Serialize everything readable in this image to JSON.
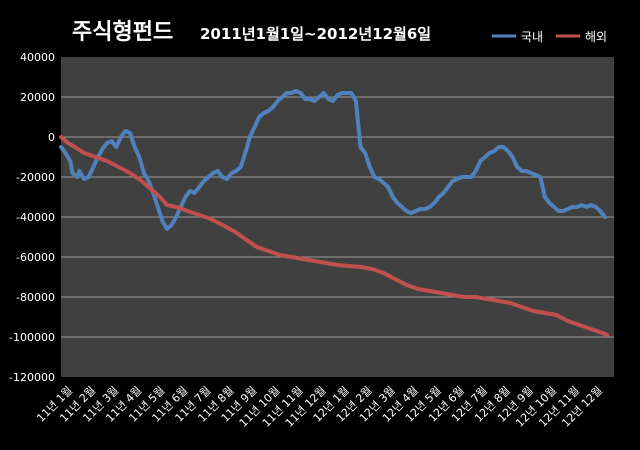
{
  "chart_data": {
    "type": "line",
    "title": "주식형펀드",
    "subtitle": "2011년1월1일~2012년12월6일",
    "xlabel": "",
    "ylabel": "",
    "ylim": [
      -120000,
      40000
    ],
    "y_ticks": [
      40000,
      20000,
      0,
      -20000,
      -40000,
      -60000,
      -80000,
      -100000,
      -120000
    ],
    "grid": true,
    "legend_position": "top-right",
    "categories": [
      "11년 1월",
      "11년 2월",
      "11년 3월",
      "11년 4월",
      "11년 5월",
      "11년 6월",
      "11년 7월",
      "11년 8월",
      "11년 9월",
      "11년 10월",
      "11년 11월",
      "11년 12월",
      "12년 1월",
      "12년 2월",
      "12년 3월",
      "12년 4월",
      "12년 5월",
      "12년 6월",
      "12년 7월",
      "12년 8월",
      "12년 9월",
      "12년 10월",
      "12년 11월",
      "12년 12월"
    ],
    "series": [
      {
        "name": "국내",
        "color": "#4F81BD",
        "points": [
          [
            0.0,
            -5000
          ],
          [
            0.2,
            -8000
          ],
          [
            0.4,
            -12000
          ],
          [
            0.5,
            -18000
          ],
          [
            0.7,
            -20000
          ],
          [
            0.8,
            -17000
          ],
          [
            1.0,
            -21000
          ],
          [
            1.2,
            -20000
          ],
          [
            1.4,
            -15000
          ],
          [
            1.6,
            -10000
          ],
          [
            1.8,
            -6000
          ],
          [
            2.0,
            -3000
          ],
          [
            2.2,
            -2000
          ],
          [
            2.4,
            -5000
          ],
          [
            2.6,
            0
          ],
          [
            2.8,
            3000
          ],
          [
            3.0,
            2000
          ],
          [
            3.2,
            -5000
          ],
          [
            3.4,
            -10000
          ],
          [
            3.6,
            -18000
          ],
          [
            3.8,
            -22000
          ],
          [
            4.0,
            -28000
          ],
          [
            4.2,
            -35000
          ],
          [
            4.4,
            -42000
          ],
          [
            4.6,
            -46000
          ],
          [
            4.8,
            -44000
          ],
          [
            5.0,
            -40000
          ],
          [
            5.2,
            -35000
          ],
          [
            5.4,
            -30000
          ],
          [
            5.6,
            -27000
          ],
          [
            5.8,
            -28000
          ],
          [
            6.0,
            -25000
          ],
          [
            6.2,
            -22000
          ],
          [
            6.4,
            -20000
          ],
          [
            6.6,
            -18000
          ],
          [
            6.8,
            -17000
          ],
          [
            7.0,
            -20000
          ],
          [
            7.2,
            -21000
          ],
          [
            7.4,
            -18000
          ],
          [
            7.6,
            -17000
          ],
          [
            7.8,
            -15000
          ],
          [
            8.0,
            -8000
          ],
          [
            8.2,
            0
          ],
          [
            8.4,
            5000
          ],
          [
            8.6,
            10000
          ],
          [
            8.8,
            12000
          ],
          [
            9.0,
            13000
          ],
          [
            9.2,
            15000
          ],
          [
            9.4,
            18000
          ],
          [
            9.6,
            20000
          ],
          [
            9.8,
            22000
          ],
          [
            10.0,
            22000
          ],
          [
            10.2,
            23000
          ],
          [
            10.4,
            22000
          ],
          [
            10.6,
            19000
          ],
          [
            10.8,
            19000
          ],
          [
            11.0,
            18000
          ],
          [
            11.2,
            20000
          ],
          [
            11.4,
            22000
          ],
          [
            11.6,
            19000
          ],
          [
            11.8,
            18000
          ],
          [
            12.0,
            21000
          ],
          [
            12.2,
            22000
          ],
          [
            12.4,
            22000
          ],
          [
            12.6,
            22000
          ],
          [
            12.8,
            18000
          ],
          [
            13.0,
            -5000
          ],
          [
            13.2,
            -8000
          ],
          [
            13.4,
            -15000
          ],
          [
            13.6,
            -20000
          ],
          [
            13.8,
            -21000
          ],
          [
            14.0,
            -23000
          ],
          [
            14.2,
            -25000
          ],
          [
            14.4,
            -30000
          ],
          [
            14.6,
            -33000
          ],
          [
            14.8,
            -35000
          ],
          [
            15.0,
            -37000
          ],
          [
            15.2,
            -38000
          ],
          [
            15.4,
            -37000
          ],
          [
            15.6,
            -36000
          ],
          [
            15.8,
            -36000
          ],
          [
            16.0,
            -35000
          ],
          [
            16.2,
            -33000
          ],
          [
            16.4,
            -30000
          ],
          [
            16.6,
            -28000
          ],
          [
            16.8,
            -25000
          ],
          [
            17.0,
            -22000
          ],
          [
            17.2,
            -21000
          ],
          [
            17.4,
            -20000
          ],
          [
            17.6,
            -20000
          ],
          [
            17.8,
            -20000
          ],
          [
            18.0,
            -17000
          ],
          [
            18.2,
            -12000
          ],
          [
            18.4,
            -10000
          ],
          [
            18.6,
            -8000
          ],
          [
            18.8,
            -7000
          ],
          [
            19.0,
            -5000
          ],
          [
            19.2,
            -5000
          ],
          [
            19.4,
            -7000
          ],
          [
            19.6,
            -10000
          ],
          [
            19.8,
            -15000
          ],
          [
            20.0,
            -17000
          ],
          [
            20.2,
            -17000
          ],
          [
            20.4,
            -18000
          ],
          [
            20.6,
            -19000
          ],
          [
            20.8,
            -20000
          ],
          [
            21.0,
            -30000
          ],
          [
            21.2,
            -33000
          ],
          [
            21.4,
            -35000
          ],
          [
            21.6,
            -37000
          ],
          [
            21.8,
            -37000
          ],
          [
            22.0,
            -36000
          ],
          [
            22.2,
            -35000
          ],
          [
            22.4,
            -35000
          ],
          [
            22.6,
            -34000
          ],
          [
            22.8,
            -35000
          ],
          [
            23.0,
            -34000
          ],
          [
            23.2,
            -35000
          ],
          [
            23.4,
            -37000
          ],
          [
            23.6,
            -40000
          ]
        ]
      },
      {
        "name": "해외",
        "color": "#C0504D",
        "points": [
          [
            0.0,
            0
          ],
          [
            0.3,
            -3000
          ],
          [
            0.6,
            -5000
          ],
          [
            1.0,
            -8000
          ],
          [
            1.5,
            -10000
          ],
          [
            2.0,
            -12000
          ],
          [
            2.5,
            -15000
          ],
          [
            3.0,
            -18000
          ],
          [
            3.5,
            -22000
          ],
          [
            4.0,
            -27000
          ],
          [
            4.3,
            -30000
          ],
          [
            4.6,
            -34000
          ],
          [
            5.0,
            -35000
          ],
          [
            5.5,
            -37000
          ],
          [
            6.0,
            -39000
          ],
          [
            6.5,
            -41000
          ],
          [
            7.0,
            -44000
          ],
          [
            7.5,
            -47000
          ],
          [
            8.0,
            -51000
          ],
          [
            8.5,
            -55000
          ],
          [
            9.0,
            -57000
          ],
          [
            9.5,
            -59000
          ],
          [
            10.0,
            -60000
          ],
          [
            10.5,
            -61000
          ],
          [
            11.0,
            -62000
          ],
          [
            11.5,
            -63000
          ],
          [
            12.0,
            -64000
          ],
          [
            12.5,
            -64500
          ],
          [
            13.0,
            -65000
          ],
          [
            13.5,
            -66000
          ],
          [
            14.0,
            -68000
          ],
          [
            14.5,
            -71000
          ],
          [
            15.0,
            -74000
          ],
          [
            15.5,
            -76000
          ],
          [
            16.0,
            -77000
          ],
          [
            16.5,
            -78000
          ],
          [
            17.0,
            -79000
          ],
          [
            17.5,
            -80000
          ],
          [
            18.0,
            -80000
          ],
          [
            18.5,
            -81000
          ],
          [
            19.0,
            -82000
          ],
          [
            19.5,
            -83000
          ],
          [
            20.0,
            -85000
          ],
          [
            20.5,
            -87000
          ],
          [
            21.0,
            -88000
          ],
          [
            21.5,
            -89000
          ],
          [
            22.0,
            -92000
          ],
          [
            22.5,
            -94000
          ],
          [
            23.0,
            -96000
          ],
          [
            23.5,
            -98000
          ],
          [
            23.7,
            -99000
          ]
        ]
      }
    ]
  }
}
